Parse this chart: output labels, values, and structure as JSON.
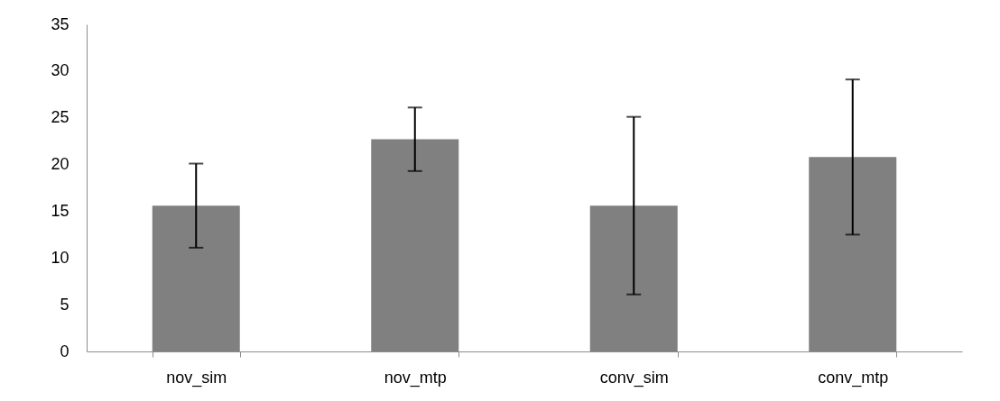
{
  "chart_data": {
    "type": "bar",
    "categories": [
      "nov_sim",
      "nov_mtp",
      "conv_sim",
      "conv_mtp"
    ],
    "values": [
      15.6,
      22.7,
      15.6,
      20.8
    ],
    "errors": [
      4.5,
      3.4,
      9.5,
      8.3
    ],
    "color": "#808080",
    "ylim": [
      0,
      35
    ],
    "yticks": [
      0,
      5,
      10,
      15,
      20,
      25,
      30,
      35
    ],
    "grid": false
  }
}
